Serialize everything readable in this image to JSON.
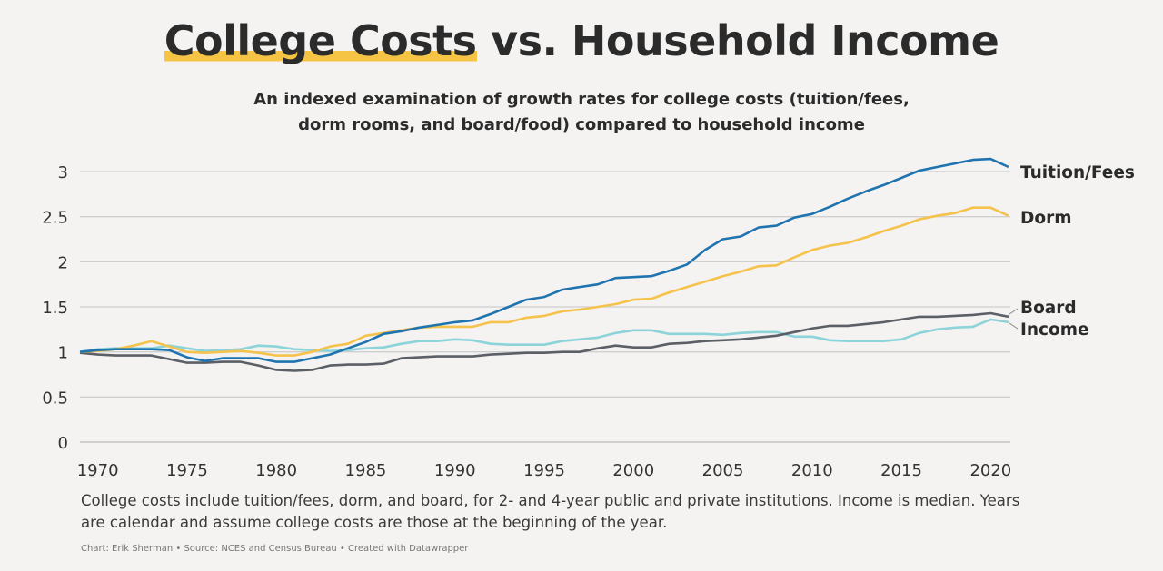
{
  "title": {
    "highlight": "College Costs",
    "rest": " vs. Household Income"
  },
  "subtitle": [
    "An indexed examination of growth rates for college costs (tuition/fees,",
    "dorm rooms, and board/food) compared to household income"
  ],
  "note": "College costs include tuition/fees, dorm, and board, for 2- and 4-year public and private institutions. Income is median. Years are calendar and assume college costs are those at the beginning of the year.",
  "credit": "Chart: Erik Sherman  •  Source: NCES and Census Bureau  •  Created with Datawrapper",
  "colors": {
    "highlight": "#f6c445",
    "background": "#f4f3f1"
  },
  "chart_data": {
    "type": "line",
    "title": "College Costs vs. Household Income",
    "xlim": [
      1969,
      2021
    ],
    "ylim": [
      0,
      3
    ],
    "grid": true,
    "legend": "direct-labels-right",
    "x_ticks": [
      "1970",
      "1975",
      "1980",
      "1985",
      "1990",
      "1995",
      "2000",
      "2005",
      "2010",
      "2015",
      "2020"
    ],
    "y_ticks": [
      "0",
      "0.5",
      "1",
      "1.5",
      "2",
      "2.5",
      "3"
    ],
    "x_start": 1969,
    "series": [
      {
        "name": "Tuition/Fees",
        "color": "#1f74b0",
        "values": [
          1.0,
          1.02,
          1.03,
          1.03,
          1.03,
          1.02,
          0.94,
          0.9,
          0.93,
          0.93,
          0.93,
          0.89,
          0.89,
          0.93,
          0.97,
          1.04,
          1.11,
          1.2,
          1.23,
          1.27,
          1.3,
          1.33,
          1.35,
          1.42,
          1.5,
          1.58,
          1.61,
          1.69,
          1.72,
          1.75,
          1.82,
          1.83,
          1.84,
          1.9,
          1.97,
          2.13,
          2.25,
          2.28,
          2.38,
          2.4,
          2.49,
          2.53,
          2.61,
          2.7,
          2.78,
          2.85,
          2.93,
          3.01,
          3.05,
          3.09,
          3.13,
          3.14,
          3.05
        ]
      },
      {
        "name": "Dorm",
        "color": "#f5c24c",
        "values": [
          1.0,
          1.01,
          1.03,
          1.07,
          1.12,
          1.06,
          1.0,
          0.99,
          1.0,
          1.01,
          0.99,
          0.96,
          0.96,
          1.0,
          1.06,
          1.09,
          1.18,
          1.21,
          1.24,
          1.27,
          1.28,
          1.28,
          1.28,
          1.33,
          1.33,
          1.38,
          1.4,
          1.45,
          1.47,
          1.5,
          1.53,
          1.58,
          1.59,
          1.66,
          1.72,
          1.78,
          1.84,
          1.89,
          1.95,
          1.96,
          2.05,
          2.13,
          2.18,
          2.21,
          2.27,
          2.34,
          2.4,
          2.47,
          2.51,
          2.54,
          2.6,
          2.6,
          2.51
        ]
      },
      {
        "name": "Board",
        "color": "#5b5f66",
        "values": [
          0.99,
          0.97,
          0.96,
          0.96,
          0.96,
          0.92,
          0.88,
          0.88,
          0.89,
          0.89,
          0.85,
          0.8,
          0.79,
          0.8,
          0.85,
          0.86,
          0.86,
          0.87,
          0.93,
          0.94,
          0.95,
          0.95,
          0.95,
          0.97,
          0.98,
          0.99,
          0.99,
          1.0,
          1.0,
          1.04,
          1.07,
          1.05,
          1.05,
          1.09,
          1.1,
          1.12,
          1.13,
          1.14,
          1.16,
          1.18,
          1.22,
          1.26,
          1.29,
          1.29,
          1.31,
          1.33,
          1.36,
          1.39,
          1.39,
          1.4,
          1.41,
          1.43,
          1.39
        ]
      },
      {
        "name": "Income",
        "color": "#8dd3da",
        "values": [
          1.0,
          1.03,
          1.04,
          1.04,
          1.04,
          1.07,
          1.04,
          1.01,
          1.02,
          1.03,
          1.07,
          1.06,
          1.03,
          1.02,
          1.01,
          1.02,
          1.04,
          1.05,
          1.09,
          1.12,
          1.12,
          1.14,
          1.13,
          1.09,
          1.08,
          1.08,
          1.08,
          1.12,
          1.14,
          1.16,
          1.21,
          1.24,
          1.24,
          1.2,
          1.2,
          1.2,
          1.19,
          1.21,
          1.22,
          1.22,
          1.17,
          1.17,
          1.13,
          1.12,
          1.12,
          1.12,
          1.14,
          1.21,
          1.25,
          1.27,
          1.28,
          1.36,
          1.33
        ]
      }
    ]
  }
}
